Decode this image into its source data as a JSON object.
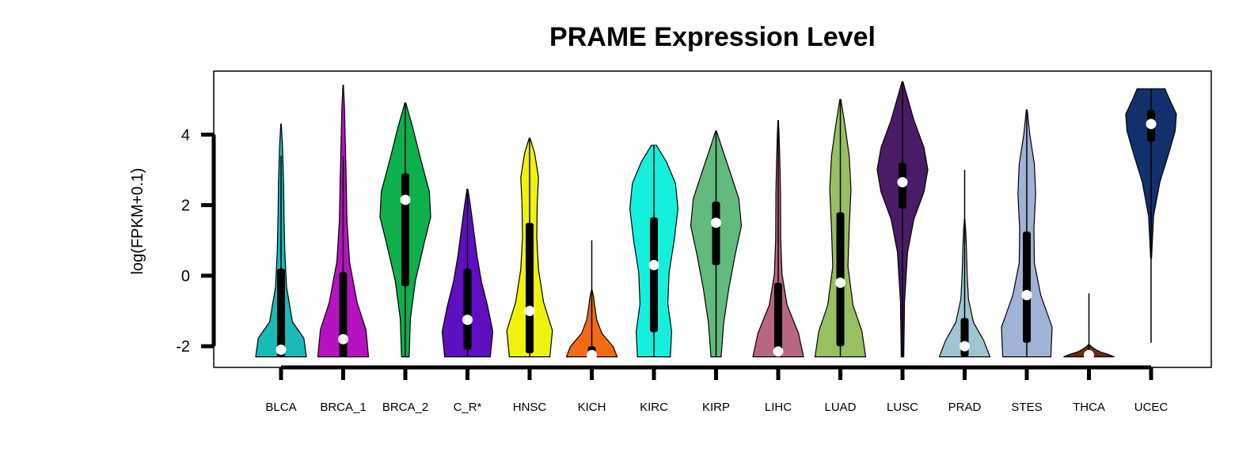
{
  "chart_data": {
    "type": "violin",
    "title": "PRAME Expression Level",
    "ylabel": "log(FPKM+0.1)",
    "xlabel": "",
    "ylim": [
      -2.6,
      5.8
    ],
    "yticks": [
      -2,
      0,
      2,
      4
    ],
    "ytick_labels": [
      "-2",
      "0",
      "2",
      "4"
    ],
    "categories": [
      "BLCA",
      "BRCA_1",
      "BRCA_2",
      "C_R*",
      "HNSC",
      "KICH",
      "KIRC",
      "KIRP",
      "LIHC",
      "LUAD",
      "LUSC",
      "PRAD",
      "STES",
      "THCA",
      "UCEC"
    ],
    "colors": [
      "#1ABAB6",
      "#B712BF",
      "#0DB04B",
      "#5E0FC0",
      "#EEF20C",
      "#F26A12",
      "#14F0DC",
      "#63BA7F",
      "#B96681",
      "#98BF60",
      "#4A1B66",
      "#9FC4D2",
      "#A2B2D6",
      "#6B2A14",
      "#12306E"
    ],
    "series": [
      {
        "name": "BLCA",
        "min": -2.3,
        "max": 4.3,
        "q1": -2.3,
        "median": -2.1,
        "q3": 0.2,
        "whisker_hi": 3.4
      },
      {
        "name": "BRCA_1",
        "min": -2.3,
        "max": 5.4,
        "q1": -2.3,
        "median": -1.8,
        "q3": 0.1,
        "whisker_hi": 3.4
      },
      {
        "name": "BRCA_2",
        "min": -2.3,
        "max": 4.9,
        "q1": -0.3,
        "median": 2.15,
        "q3": 2.9,
        "whisker_hi": 4.9
      },
      {
        "name": "C_R*",
        "min": -2.3,
        "max": 2.45,
        "q1": -2.1,
        "median": -1.25,
        "q3": 0.2,
        "whisker_hi": 2.45
      },
      {
        "name": "HNSC",
        "min": -2.3,
        "max": 3.9,
        "q1": -2.2,
        "median": -1.0,
        "q3": 1.5,
        "whisker_hi": 3.9
      },
      {
        "name": "KICH",
        "min": -2.3,
        "max": -0.4,
        "q1": -2.3,
        "median": -2.25,
        "q3": -2.0,
        "whisker_hi": 1.0
      },
      {
        "name": "KIRC",
        "min": -2.3,
        "max": 3.7,
        "q1": -1.6,
        "median": 0.3,
        "q3": 1.65,
        "whisker_hi": 3.7
      },
      {
        "name": "KIRP",
        "min": -2.3,
        "max": 4.1,
        "q1": 0.3,
        "median": 1.5,
        "q3": 2.1,
        "whisker_hi": 4.1
      },
      {
        "name": "LIHC",
        "min": -2.3,
        "max": 4.4,
        "q1": -2.3,
        "median": -2.15,
        "q3": -0.2,
        "whisker_hi": 4.4
      },
      {
        "name": "LUAD",
        "min": -2.3,
        "max": 5.0,
        "q1": -2.0,
        "median": -0.2,
        "q3": 1.8,
        "whisker_hi": 5.0
      },
      {
        "name": "LUSC",
        "min": -2.3,
        "max": 5.5,
        "q1": 1.9,
        "median": 2.65,
        "q3": 3.2,
        "whisker_hi": 5.5
      },
      {
        "name": "PRAD",
        "min": -2.3,
        "max": 1.6,
        "q1": -2.3,
        "median": -2.0,
        "q3": -1.2,
        "whisker_hi": 3.0
      },
      {
        "name": "STES",
        "min": -2.3,
        "max": 4.7,
        "q1": -1.9,
        "median": -0.55,
        "q3": 1.25,
        "whisker_hi": 4.7
      },
      {
        "name": "THCA",
        "min": -2.3,
        "max": -1.95,
        "q1": -2.3,
        "median": -2.25,
        "q3": -2.2,
        "whisker_hi": -0.5
      },
      {
        "name": "UCEC",
        "min": 0.5,
        "max": 5.3,
        "q1": 3.8,
        "median": 4.3,
        "q3": 4.7,
        "whisker_hi": 5.3,
        "whisker_lo": -1.9
      }
    ],
    "grid": false,
    "legend": "none"
  }
}
